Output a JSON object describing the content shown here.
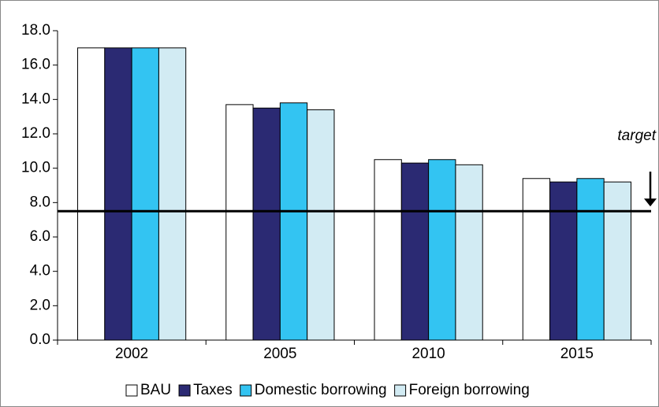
{
  "chart_data": {
    "type": "bar",
    "categories": [
      "2002",
      "2005",
      "2010",
      "2015"
    ],
    "series": [
      {
        "name": "BAU",
        "color": "#ffffff",
        "values": [
          17.0,
          13.7,
          10.5,
          9.4
        ]
      },
      {
        "name": "Taxes",
        "color": "#2b2a73",
        "values": [
          17.0,
          13.5,
          10.3,
          9.2
        ]
      },
      {
        "name": "Domestic borrowing",
        "color": "#33c4f2",
        "values": [
          17.0,
          13.8,
          10.5,
          9.4
        ]
      },
      {
        "name": "Foreign borrowing",
        "color": "#d2ebf3",
        "values": [
          17.0,
          13.4,
          10.2,
          9.2
        ]
      }
    ],
    "ylim": [
      0,
      18
    ],
    "yticks": [
      {
        "value": 0,
        "label": "0.0"
      },
      {
        "value": 2,
        "label": "2.0"
      },
      {
        "value": 4,
        "label": "4.0"
      },
      {
        "value": 6,
        "label": "6.0"
      },
      {
        "value": 8,
        "label": "8.0"
      },
      {
        "value": 10,
        "label": "10.0"
      },
      {
        "value": 12,
        "label": "12.0"
      },
      {
        "value": 14,
        "label": "14.0"
      },
      {
        "value": 16,
        "label": "16.0"
      },
      {
        "value": 18,
        "label": "18.0"
      }
    ],
    "reference_line": {
      "value": 7.5,
      "label": "target"
    },
    "legend": "bottom"
  }
}
